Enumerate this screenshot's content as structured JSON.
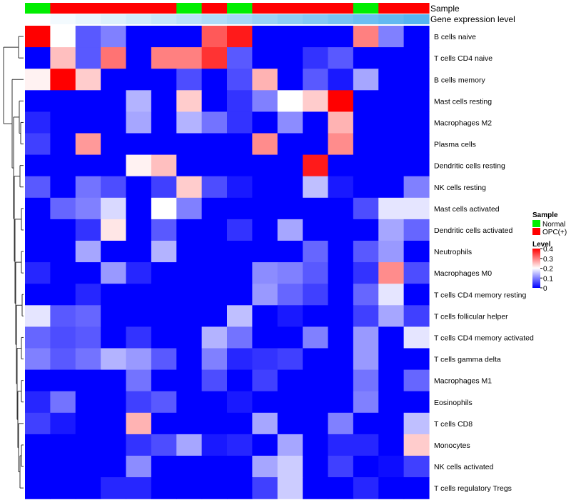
{
  "chart_data": {
    "type": "heatmap",
    "title": "",
    "annotation_labels": [
      "Sample",
      "Gene expression level"
    ],
    "rows": [
      "B cells naive",
      "T cells CD4 naive",
      "B cells memory",
      "Mast cells resting",
      "Macrophages M2",
      "Plasma cells",
      "Dendritic cells resting",
      "NK cells resting",
      "Mast cells activated",
      "Dendritic cells activated",
      "Neutrophils",
      "Macrophages M0",
      "T cells CD4 memory resting",
      "T cells follicular helper",
      "T cells CD4 memory activated",
      "T cells gamma delta",
      "Macrophages M1",
      "Eosinophils",
      "T cells CD8",
      "Monocytes",
      "NK cells activated",
      "T cells regulatory  Tregs"
    ],
    "sample_groups": [
      "Normal",
      "OPC(+)",
      "OPC(+)",
      "OPC(+)",
      "OPC(+)",
      "OPC(+)",
      "Normal",
      "OPC(+)",
      "Normal",
      "OPC(+)",
      "OPC(+)",
      "OPC(+)",
      "OPC(+)",
      "Normal",
      "OPC(+)",
      "OPC(+)"
    ],
    "gene_expression_level": [
      0.0,
      0.07,
      0.13,
      0.2,
      0.27,
      0.33,
      0.4,
      0.47,
      0.53,
      0.6,
      0.67,
      0.73,
      0.8,
      0.87,
      0.93,
      1.0
    ],
    "values": [
      [
        0.4,
        0.2,
        0.07,
        0.1,
        0.0,
        0.0,
        0.0,
        0.33,
        0.38,
        0.0,
        0.0,
        0.0,
        0.0,
        0.3,
        0.1,
        0.0
      ],
      [
        0.0,
        0.25,
        0.07,
        0.31,
        0.0,
        0.3,
        0.3,
        0.36,
        0.07,
        0.0,
        0.0,
        0.04,
        0.07,
        0.0,
        0.0,
        0.0
      ],
      [
        0.21,
        0.4,
        0.24,
        0.0,
        0.0,
        0.0,
        0.06,
        0.0,
        0.06,
        0.26,
        0.0,
        0.07,
        0.02,
        0.13,
        0.0,
        0.0
      ],
      [
        0.0,
        0.0,
        0.0,
        0.0,
        0.14,
        0.0,
        0.24,
        0.0,
        0.04,
        0.1,
        0.2,
        0.24,
        0.4,
        0.0,
        0.0,
        0.0
      ],
      [
        0.03,
        0.0,
        0.0,
        0.0,
        0.13,
        0.0,
        0.14,
        0.09,
        0.04,
        0.0,
        0.11,
        0.0,
        0.26,
        0.0,
        0.0,
        0.0
      ],
      [
        0.05,
        0.0,
        0.28,
        0.0,
        0.0,
        0.0,
        0.0,
        0.0,
        0.0,
        0.29,
        0.0,
        0.0,
        0.29,
        0.0,
        0.0,
        0.0
      ],
      [
        0.0,
        0.0,
        0.0,
        0.0,
        0.21,
        0.25,
        0.0,
        0.0,
        0.0,
        0.0,
        0.0,
        0.38,
        0.0,
        0.0,
        0.0,
        0.0
      ],
      [
        0.07,
        0.0,
        0.09,
        0.06,
        0.0,
        0.05,
        0.24,
        0.06,
        0.02,
        0.0,
        0.0,
        0.15,
        0.02,
        0.0,
        0.0,
        0.1
      ],
      [
        0.0,
        0.08,
        0.1,
        0.17,
        0.0,
        0.2,
        0.1,
        0.0,
        0.0,
        0.0,
        0.0,
        0.0,
        0.0,
        0.06,
        0.18,
        0.18
      ],
      [
        0.0,
        0.0,
        0.04,
        0.22,
        0.0,
        0.07,
        0.0,
        0.0,
        0.04,
        0.0,
        0.13,
        0.0,
        0.0,
        0.0,
        0.13,
        0.08
      ],
      [
        0.0,
        0.0,
        0.13,
        0.0,
        0.0,
        0.14,
        0.0,
        0.0,
        0.0,
        0.0,
        0.0,
        0.08,
        0.0,
        0.07,
        0.12,
        0.0
      ],
      [
        0.03,
        0.0,
        0.0,
        0.12,
        0.03,
        0.0,
        0.0,
        0.0,
        0.0,
        0.11,
        0.1,
        0.07,
        0.0,
        0.04,
        0.29,
        0.06
      ],
      [
        0.0,
        0.0,
        0.03,
        0.0,
        0.0,
        0.0,
        0.0,
        0.0,
        0.0,
        0.12,
        0.08,
        0.05,
        0.0,
        0.08,
        0.18,
        0.0
      ],
      [
        0.18,
        0.07,
        0.08,
        0.0,
        0.0,
        0.0,
        0.0,
        0.0,
        0.15,
        0.0,
        0.02,
        0.0,
        0.0,
        0.05,
        0.13,
        0.05
      ],
      [
        0.08,
        0.06,
        0.07,
        0.0,
        0.04,
        0.0,
        0.0,
        0.14,
        0.09,
        0.0,
        0.0,
        0.1,
        0.0,
        0.12,
        0.0,
        0.18
      ],
      [
        0.1,
        0.07,
        0.09,
        0.14,
        0.12,
        0.07,
        0.0,
        0.1,
        0.03,
        0.04,
        0.05,
        0.0,
        0.0,
        0.12,
        0.0,
        0.0
      ],
      [
        0.0,
        0.0,
        0.0,
        0.0,
        0.09,
        0.0,
        0.0,
        0.06,
        0.0,
        0.05,
        0.0,
        0.0,
        0.0,
        0.09,
        0.0,
        0.08
      ],
      [
        0.03,
        0.09,
        0.0,
        0.0,
        0.05,
        0.07,
        0.0,
        0.0,
        0.02,
        0.0,
        0.0,
        0.0,
        0.0,
        0.1,
        0.0,
        0.0
      ],
      [
        0.05,
        0.02,
        0.0,
        0.0,
        0.26,
        0.0,
        0.0,
        0.0,
        0.0,
        0.13,
        0.0,
        0.0,
        0.1,
        0.0,
        0.0,
        0.15
      ],
      [
        0.0,
        0.0,
        0.0,
        0.0,
        0.04,
        0.06,
        0.13,
        0.02,
        0.03,
        0.0,
        0.13,
        0.0,
        0.03,
        0.03,
        0.0,
        0.24
      ],
      [
        0.0,
        0.0,
        0.0,
        0.0,
        0.11,
        0.0,
        0.0,
        0.0,
        0.0,
        0.13,
        0.16,
        0.0,
        0.05,
        0.0,
        0.01,
        0.05
      ],
      [
        0.0,
        0.0,
        0.0,
        0.03,
        0.03,
        0.0,
        0.0,
        0.0,
        0.0,
        0.05,
        0.16,
        0.0,
        0.0,
        0.03,
        0.0,
        0.0
      ]
    ],
    "legend": {
      "sample_title": "Sample",
      "sample_items": [
        {
          "name": "Normal",
          "color": "#00ee00"
        },
        {
          "name": "OPC(+)",
          "color": "#ff0000"
        }
      ],
      "level_title": "Level",
      "level_ticks": [
        "0.4",
        "0.3",
        "0.2",
        "0.1",
        "0"
      ],
      "level_tick_values": [
        0.4,
        0.3,
        0.2,
        0.1,
        0.0
      ],
      "level_range": [
        0,
        0.4
      ]
    },
    "colors": {
      "low": "#0000ff",
      "mid": "#ffffff",
      "high": "#ff0000",
      "expression_low": "#ffffff",
      "expression_high": "#56b4f0"
    }
  }
}
